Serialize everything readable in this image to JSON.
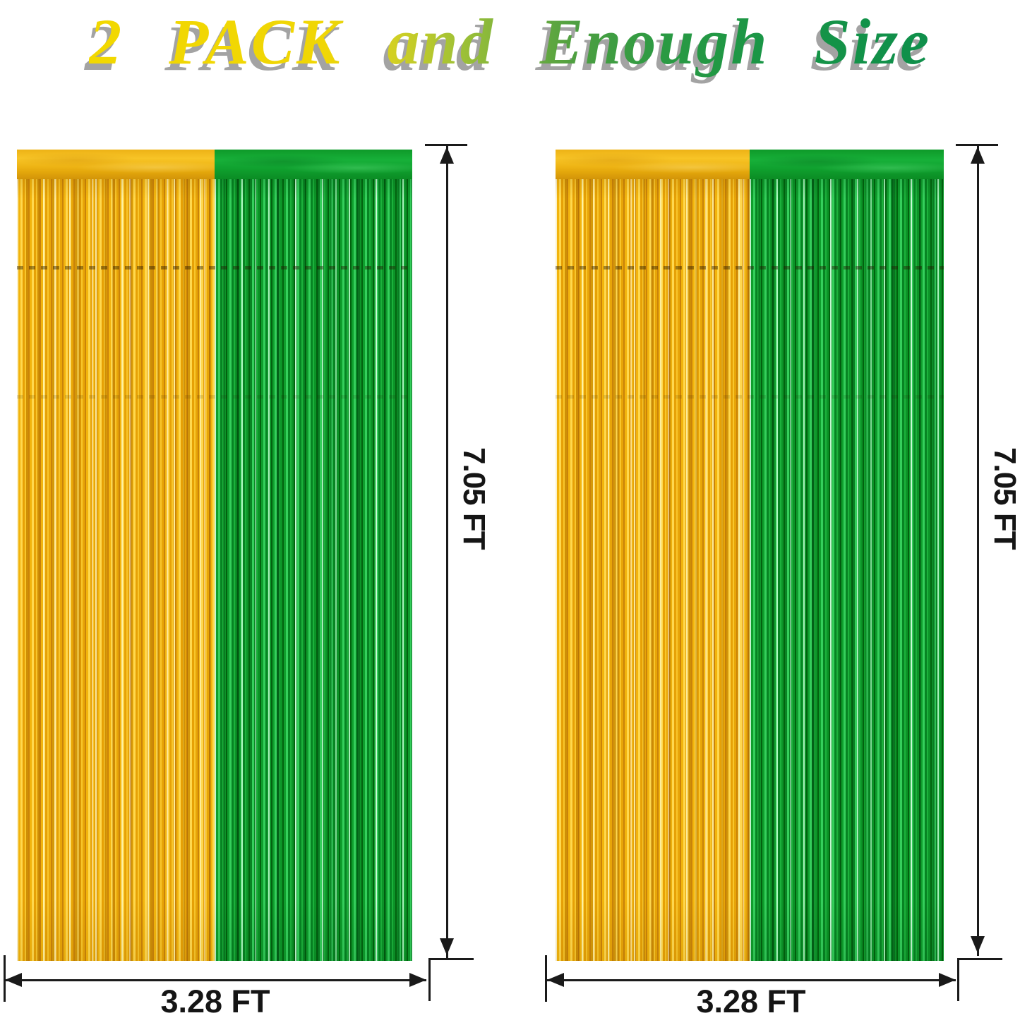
{
  "title": {
    "text": "2 PACK and Enough Size"
  },
  "curtains": [
    {
      "position": "left",
      "height_label": "7.05 FT",
      "width_label": "3.28 FT"
    },
    {
      "position": "right",
      "height_label": "7.05 FT",
      "width_label": "3.28 FT"
    }
  ],
  "colors": {
    "gold": "#F3B70B",
    "green": "#13A231",
    "title_yellow": "#F2D800",
    "title_green": "#0F8F4B",
    "dimension_line": "#1A1A1A",
    "shadow_gray": "#A3A3A3",
    "background": "#FFFFFF"
  }
}
